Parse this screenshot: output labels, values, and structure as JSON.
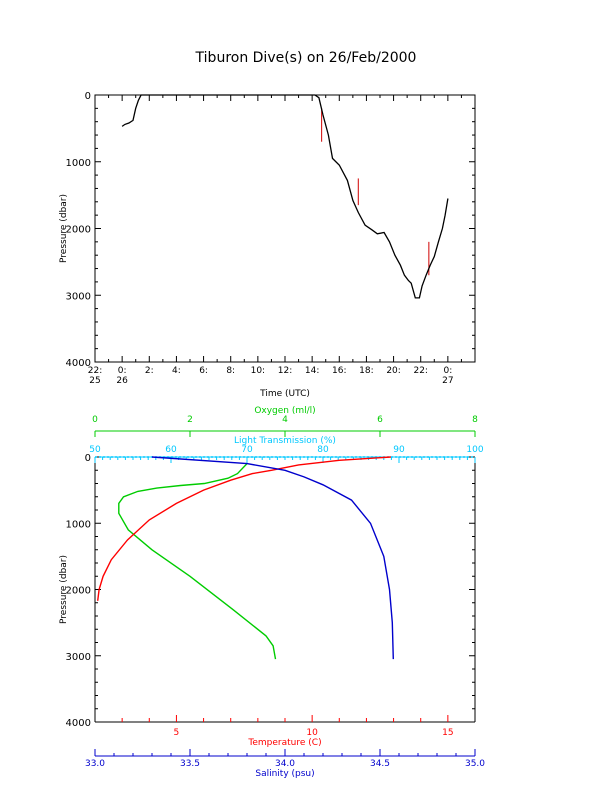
{
  "title": "Tiburon Dive(s) on 26/Feb/2000",
  "colors": {
    "axis": "#000000",
    "pressure_trace": "#000000",
    "spike": "#d00000",
    "oxygen": "#00cc00",
    "light_transmission": "#00c8ff",
    "temperature": "#ff0000",
    "salinity": "#0000cc"
  },
  "chart_data": [
    {
      "type": "line",
      "title": "Tiburon Dive(s) on 26/Feb/2000",
      "xlabel": "Time (UTC)",
      "ylabel": "Pressure (dbar)",
      "xlim": [
        -2,
        26
      ],
      "ylim": [
        4000,
        0
      ],
      "x_unit": "hours since 26 Feb 00:00 UTC",
      "xticks": [
        {
          "x": -2,
          "line1": "22:",
          "line2": "25"
        },
        {
          "x": 0,
          "line1": "0:",
          "line2": "26"
        },
        {
          "x": 2,
          "line1": "2:",
          "line2": ""
        },
        {
          "x": 4,
          "line1": "4:",
          "line2": ""
        },
        {
          "x": 6,
          "line1": "6:",
          "line2": ""
        },
        {
          "x": 8,
          "line1": "8:",
          "line2": ""
        },
        {
          "x": 10,
          "line1": "10:",
          "line2": ""
        },
        {
          "x": 12,
          "line1": "12:",
          "line2": ""
        },
        {
          "x": 14,
          "line1": "14:",
          "line2": ""
        },
        {
          "x": 16,
          "line1": "16:",
          "line2": ""
        },
        {
          "x": 18,
          "line1": "18:",
          "line2": ""
        },
        {
          "x": 20,
          "line1": "20:",
          "line2": ""
        },
        {
          "x": 22,
          "line1": "22:",
          "line2": ""
        },
        {
          "x": 24,
          "line1": "0:",
          "line2": "27"
        }
      ],
      "yticks": [
        0,
        1000,
        2000,
        3000,
        4000
      ],
      "series": [
        {
          "x": [
            0.0,
            0.2,
            0.5,
            0.8,
            1.0,
            1.2,
            1.4,
            3,
            6,
            9,
            12,
            14.2,
            14.5,
            14.8,
            15.2,
            15.5,
            16.0,
            16.6,
            17.0,
            17.4,
            17.9,
            18.4,
            18.8,
            19.3,
            19.7,
            20.1,
            20.5,
            20.8,
            21.1,
            21.3,
            21.6,
            21.9,
            22.1,
            22.4,
            22.7,
            23.0,
            23.3,
            23.6,
            23.8,
            24.0
          ],
          "y": [
            470,
            440,
            420,
            380,
            200,
            80,
            0,
            0,
            0,
            0,
            0,
            0,
            40,
            300,
            600,
            950,
            1050,
            1280,
            1580,
            1760,
            1950,
            2020,
            2080,
            2060,
            2200,
            2400,
            2550,
            2700,
            2780,
            2820,
            3040,
            3040,
            2860,
            2700,
            2550,
            2420,
            2200,
            2000,
            1800,
            1550
          ]
        }
      ],
      "spikes": [
        {
          "x": 14.7,
          "y_top": 200,
          "y_bottom": 700
        },
        {
          "x": 17.4,
          "y_top": 1250,
          "y_bottom": 1650
        },
        {
          "x": 22.6,
          "y_top": 2200,
          "y_bottom": 2700
        }
      ]
    },
    {
      "type": "line",
      "ylabel": "Pressure (dbar)",
      "ylim": [
        4000,
        0
      ],
      "yticks": [
        0,
        1000,
        2000,
        3000,
        4000
      ],
      "axes": {
        "oxygen": {
          "label": "Oxygen (ml/l)",
          "lim": [
            0,
            8
          ],
          "ticks": [
            0,
            2,
            4,
            6,
            8
          ],
          "position": "top-outer"
        },
        "light_transmission": {
          "label": "Light Transmission (%)",
          "lim": [
            50,
            100
          ],
          "ticks": [
            50,
            60,
            70,
            80,
            90,
            100
          ],
          "position": "top-inner"
        },
        "temperature": {
          "label": "Temperature (C)",
          "lim": [
            2,
            16
          ],
          "ticks": [
            5,
            10,
            15
          ],
          "position": "bottom-inner"
        },
        "salinity": {
          "label": "Salinity (psu)",
          "lim": [
            33.0,
            35.0
          ],
          "ticks": [
            "33.0",
            "33.5",
            "34.0",
            "34.5",
            "35.0"
          ],
          "position": "bottom-outer"
        }
      },
      "series": [
        {
          "name": "Oxygen",
          "axis": "oxygen",
          "x": [
            3.2,
            3.0,
            2.8,
            2.3,
            1.8,
            1.3,
            0.9,
            0.6,
            0.5,
            0.5,
            0.7,
            1.2,
            2.0,
            2.9,
            3.6,
            3.75,
            3.8
          ],
          "y": [
            100,
            250,
            320,
            400,
            430,
            470,
            520,
            600,
            700,
            850,
            1100,
            1400,
            1800,
            2300,
            2700,
            2850,
            3050
          ]
        },
        {
          "name": "Light Transmission",
          "axis": "light_transmission",
          "x": [
            50,
            55,
            60,
            70,
            80,
            90,
            95,
            100
          ],
          "y": [
            0,
            0,
            0,
            0,
            0,
            0,
            0,
            0
          ]
        },
        {
          "name": "Temperature",
          "axis": "temperature",
          "x": [
            12.9,
            11.0,
            9.5,
            8.5,
            7.8,
            7.0,
            6.0,
            5.0,
            4.0,
            3.2,
            2.6,
            2.3,
            2.15,
            2.1
          ],
          "y": [
            0,
            50,
            120,
            200,
            250,
            350,
            500,
            700,
            950,
            1250,
            1550,
            1800,
            2000,
            2170
          ]
        },
        {
          "name": "Salinity",
          "axis": "salinity",
          "x": [
            33.3,
            33.8,
            34.0,
            34.1,
            34.2,
            34.35,
            34.45,
            34.52,
            34.55,
            34.565,
            34.57
          ],
          "y": [
            0,
            100,
            200,
            300,
            420,
            650,
            1000,
            1500,
            2000,
            2500,
            3050
          ]
        }
      ]
    }
  ]
}
